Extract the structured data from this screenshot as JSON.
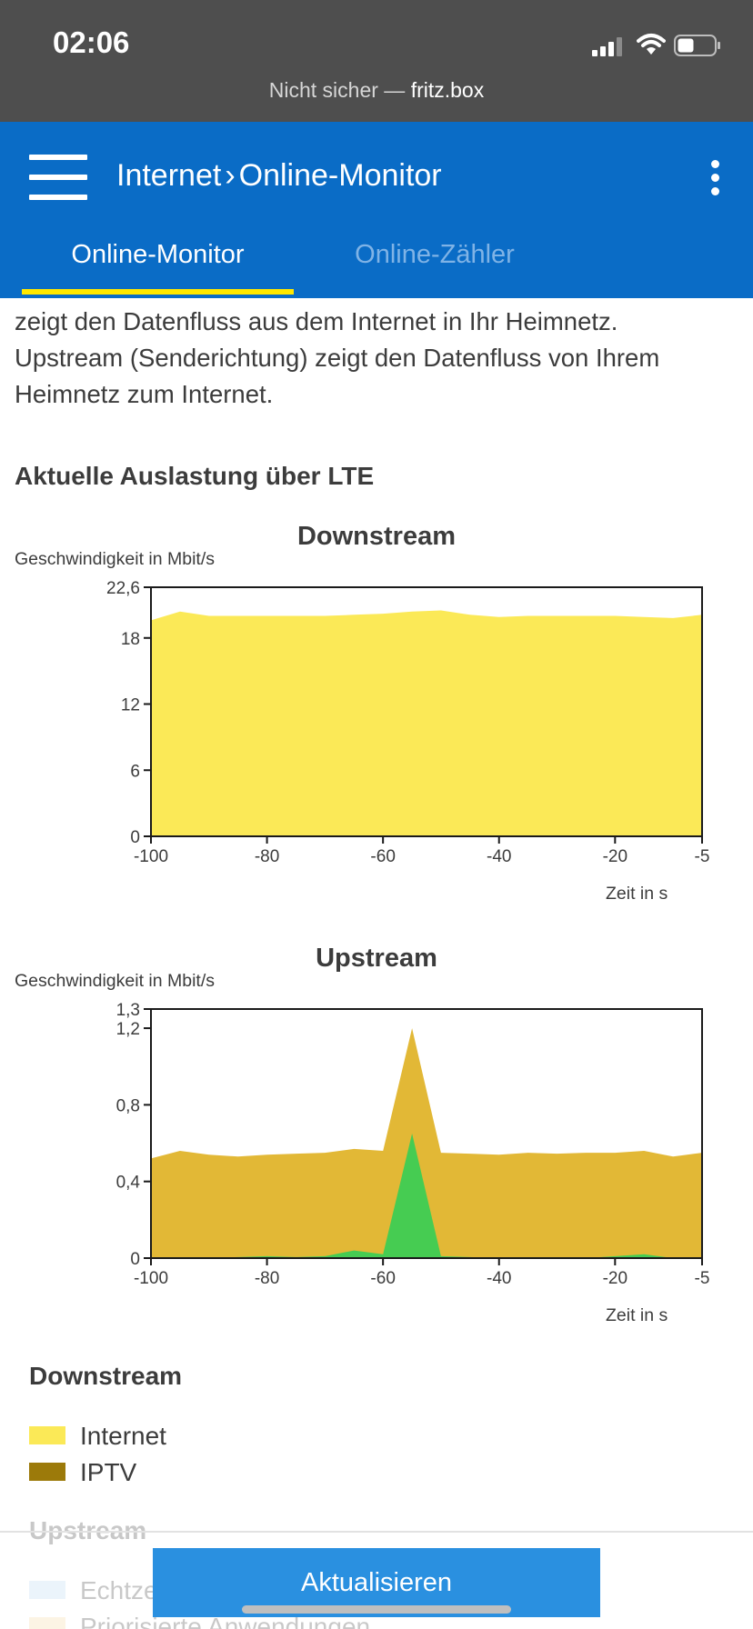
{
  "status_bar": {
    "time": "02:06",
    "url_prefix": "Nicht sicher — ",
    "url_host": "fritz.box",
    "icons": [
      "signal-icon",
      "wifi-icon",
      "battery-icon"
    ]
  },
  "header": {
    "menu_icon": "menu-icon",
    "breadcrumb": {
      "parent": "Internet",
      "separator": "›",
      "current": "Online-Monitor"
    },
    "more_icon": "kebab-icon",
    "background": "#0a6cc6",
    "tabs": [
      {
        "label": "Online-Monitor",
        "active": true
      },
      {
        "label": "Online-Zähler",
        "active": false
      }
    ],
    "tab_indicator_color": "#ffe800"
  },
  "intro": {
    "lines": [
      "zeigt den Datenfluss aus dem Internet in Ihr Heimnetz.",
      "Upstream (Senderichtung) zeigt den Datenfluss von Ihrem",
      "Heimnetz zum Internet."
    ]
  },
  "section_title": "Aktuelle Auslastung über LTE",
  "chart_data": [
    {
      "type": "area",
      "title": "Downstream",
      "ylabel": "Geschwindigkeit in Mbit/s",
      "xlabel": "Zeit in s",
      "ylim": [
        0,
        22.6
      ],
      "xlim": [
        -100,
        -5
      ],
      "yticks": [
        0,
        6,
        12,
        18,
        22.6
      ],
      "ytick_labels": [
        "0",
        "6",
        "12",
        "18",
        "22,6"
      ],
      "xticks": [
        -100,
        -80,
        -60,
        -40,
        -20,
        -5
      ],
      "xtick_labels": [
        "-100",
        "-80",
        "-60",
        "-40",
        "-20",
        "-5"
      ],
      "x": [
        -100,
        -95,
        -90,
        -85,
        -80,
        -75,
        -70,
        -65,
        -60,
        -55,
        -50,
        -45,
        -40,
        -35,
        -30,
        -25,
        -20,
        -15,
        -10,
        -5
      ],
      "series": [
        {
          "name": "Internet",
          "color": "#fbe957",
          "values": [
            19.6,
            20.4,
            20.0,
            20.0,
            20.0,
            20.0,
            20.0,
            20.1,
            20.2,
            20.4,
            20.5,
            20.1,
            19.9,
            20.0,
            20.0,
            20.0,
            20.0,
            19.9,
            19.8,
            20.1
          ]
        }
      ]
    },
    {
      "type": "area",
      "title": "Upstream",
      "ylabel": "Geschwindigkeit in Mbit/s",
      "xlabel": "Zeit in s",
      "ylim": [
        0,
        1.3
      ],
      "xlim": [
        -100,
        -5
      ],
      "yticks": [
        0,
        0.4,
        0.8,
        1.2,
        1.3
      ],
      "ytick_labels": [
        "0",
        "0,4",
        "0,8",
        "1,2",
        "1,3"
      ],
      "xticks": [
        -100,
        -80,
        -60,
        -40,
        -20,
        -5
      ],
      "xtick_labels": [
        "-100",
        "-80",
        "-60",
        "-40",
        "-20",
        "-5"
      ],
      "x": [
        -100,
        -95,
        -90,
        -85,
        -80,
        -75,
        -70,
        -65,
        -60,
        -55,
        -50,
        -45,
        -40,
        -35,
        -30,
        -25,
        -20,
        -15,
        -10,
        -5
      ],
      "series": [
        {
          "color": "#e2b836",
          "values": [
            0.52,
            0.56,
            0.54,
            0.53,
            0.54,
            0.545,
            0.55,
            0.57,
            0.56,
            1.2,
            0.55,
            0.545,
            0.54,
            0.55,
            0.545,
            0.55,
            0.55,
            0.56,
            0.53,
            0.55
          ]
        },
        {
          "color": "#46cc52",
          "values": [
            0,
            0,
            0,
            0.005,
            0.01,
            0.005,
            0.01,
            0.04,
            0.02,
            0.65,
            0.01,
            0.005,
            0,
            0,
            0,
            0,
            0.01,
            0.02,
            0,
            0
          ]
        }
      ]
    }
  ],
  "legend": {
    "downstream_title": "Downstream",
    "downstream_items": [
      {
        "label": "Internet",
        "color": "#fbe957"
      },
      {
        "label": "IPTV",
        "color": "#9c7a0a"
      }
    ],
    "upstream_title": "Upstream",
    "upstream_items": [
      {
        "label": "Echtzeitanwendungen",
        "color": "#b8d8f4"
      },
      {
        "label": "Priorisierte Anwendungen",
        "color": "#f7d9a0"
      }
    ]
  },
  "refresh_button": "Aktualisieren"
}
